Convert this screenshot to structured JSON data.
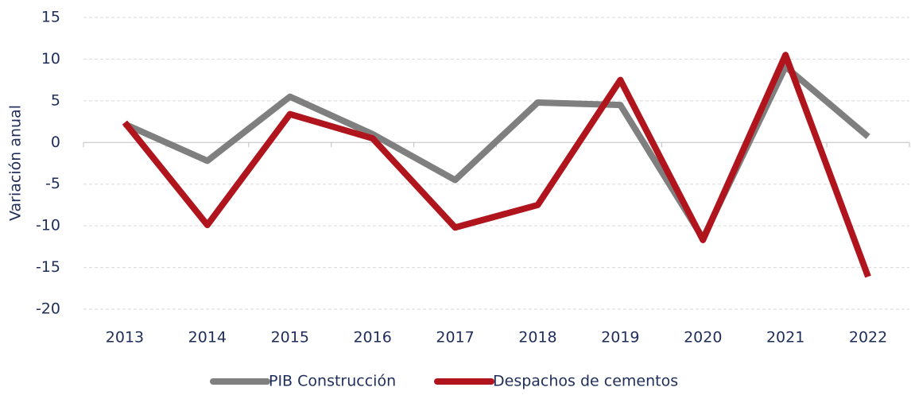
{
  "chart_data": {
    "type": "line",
    "y_axis_label": "Variación anual",
    "categories": [
      "2013",
      "2014",
      "2015",
      "2016",
      "2017",
      "2018",
      "2019",
      "2020",
      "2021",
      "2022"
    ],
    "series": [
      {
        "name": "PIB Construcción",
        "color": "#7f7f7f",
        "values": [
          2.2,
          -2.2,
          5.5,
          1.0,
          -4.5,
          4.8,
          4.5,
          -11.5,
          9.1,
          0.7
        ]
      },
      {
        "name": "Despachos de cementos",
        "color": "#b0141c",
        "values": [
          2.4,
          -9.9,
          3.4,
          0.5,
          -10.2,
          -7.5,
          7.5,
          -11.7,
          10.5,
          -16.1
        ]
      }
    ],
    "ylim": [
      -20,
      15
    ],
    "yticks": [
      -20,
      -15,
      -10,
      -5,
      0,
      5,
      10,
      15
    ],
    "grid": true,
    "legend": "bottom"
  }
}
